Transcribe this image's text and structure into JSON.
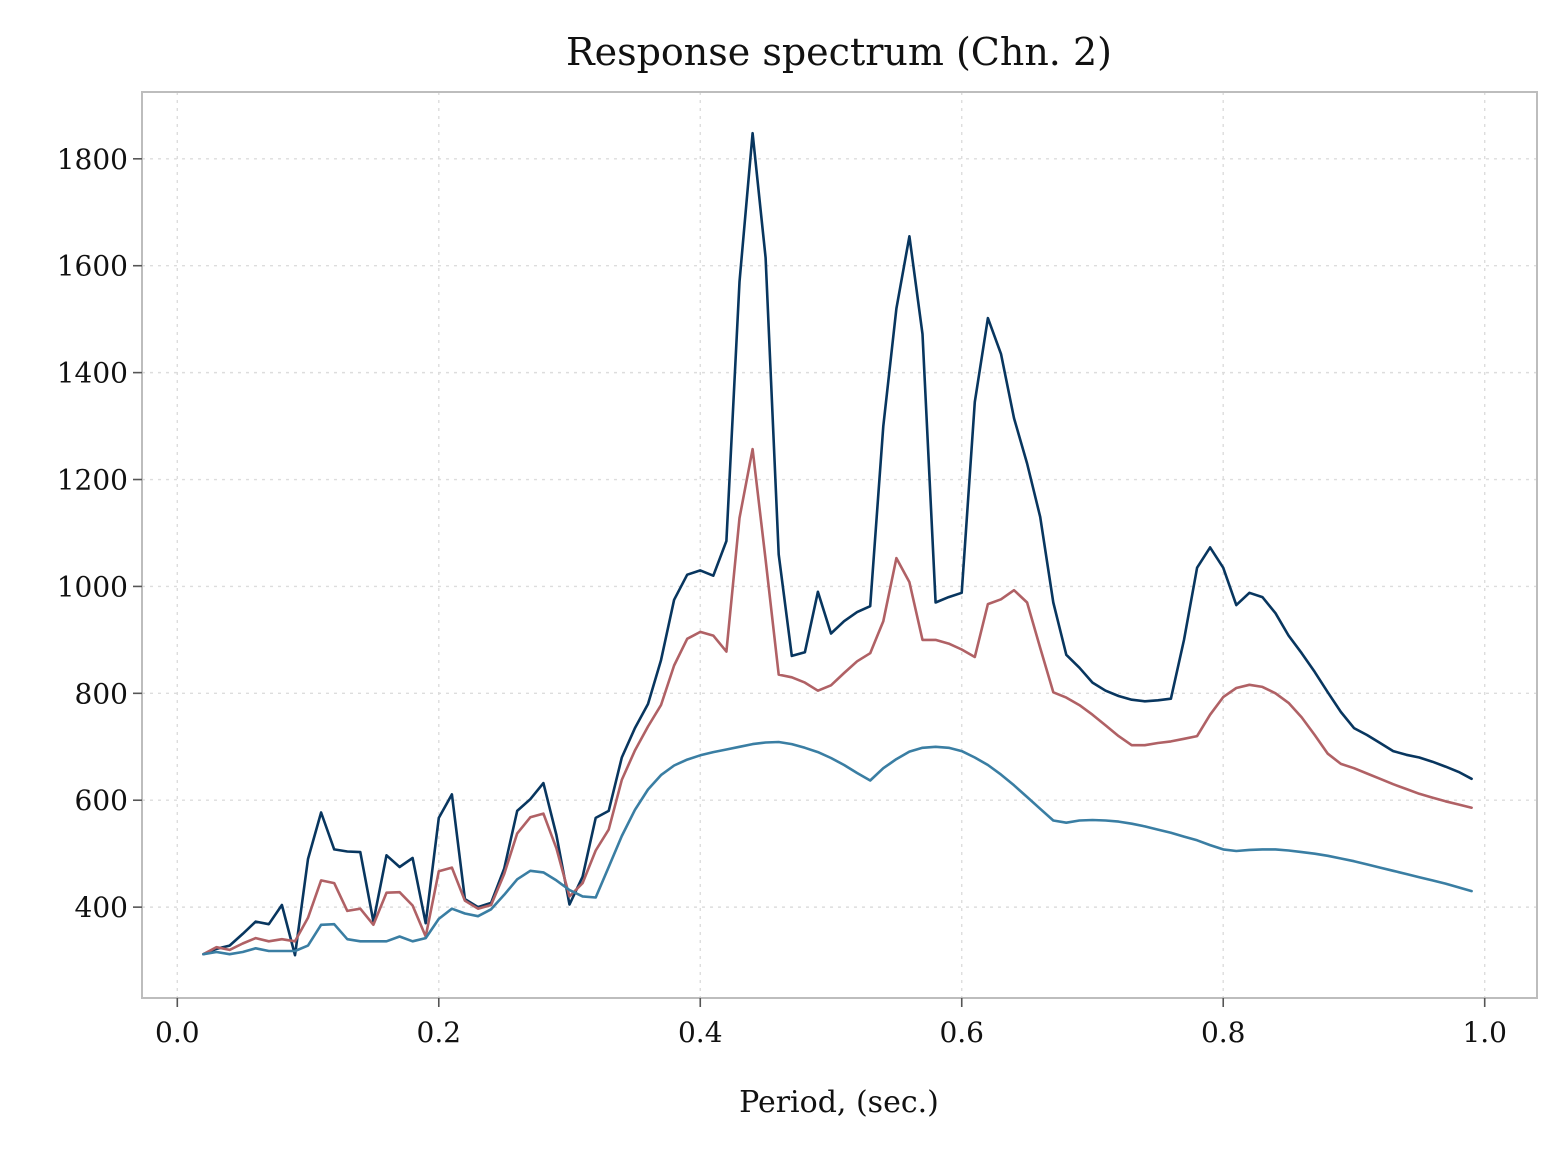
{
  "chart_data": {
    "type": "line",
    "title": "Response spectrum (Chn. 2)",
    "xlabel": "Period, (sec.)",
    "ylabel": "",
    "xlim": [
      -0.027,
      1.04
    ],
    "ylim": [
      230,
      1925
    ],
    "xticks": [
      0.0,
      0.2,
      0.4,
      0.6,
      0.8,
      1.0
    ],
    "xtick_labels": [
      "0.0",
      "0.2",
      "0.4",
      "0.6",
      "0.8",
      "1.0"
    ],
    "yticks": [
      400,
      600,
      800,
      1000,
      1200,
      1400,
      1600,
      1800
    ],
    "ytick_labels": [
      "400",
      "600",
      "800",
      "1000",
      "1200",
      "1400",
      "1600",
      "1800"
    ],
    "grid": true,
    "legend": "none",
    "colors": [
      "#08365f",
      "#b06165",
      "#3a7ea3"
    ],
    "series": [
      {
        "points": [
          [
            0.02,
            312
          ],
          [
            0.03,
            322
          ],
          [
            0.04,
            328
          ],
          [
            0.05,
            350
          ],
          [
            0.06,
            373
          ],
          [
            0.07,
            368
          ],
          [
            0.08,
            404
          ],
          [
            0.09,
            310
          ],
          [
            0.1,
            490
          ],
          [
            0.11,
            577
          ],
          [
            0.12,
            508
          ],
          [
            0.13,
            504
          ],
          [
            0.14,
            503
          ],
          [
            0.15,
            373
          ],
          [
            0.16,
            497
          ],
          [
            0.17,
            475
          ],
          [
            0.18,
            492
          ],
          [
            0.19,
            370
          ],
          [
            0.2,
            567
          ],
          [
            0.21,
            611
          ],
          [
            0.22,
            415
          ],
          [
            0.23,
            400
          ],
          [
            0.24,
            408
          ],
          [
            0.25,
            472
          ],
          [
            0.26,
            580
          ],
          [
            0.27,
            602
          ],
          [
            0.28,
            632
          ],
          [
            0.29,
            535
          ],
          [
            0.3,
            405
          ],
          [
            0.31,
            457
          ],
          [
            0.32,
            567
          ],
          [
            0.33,
            580
          ],
          [
            0.34,
            680
          ],
          [
            0.35,
            735
          ],
          [
            0.36,
            780
          ],
          [
            0.37,
            862
          ],
          [
            0.38,
            975
          ],
          [
            0.39,
            1022
          ],
          [
            0.4,
            1030
          ],
          [
            0.41,
            1020
          ],
          [
            0.42,
            1085
          ],
          [
            0.43,
            1570
          ],
          [
            0.44,
            1848
          ],
          [
            0.45,
            1615
          ],
          [
            0.46,
            1060
          ],
          [
            0.47,
            870
          ],
          [
            0.48,
            877
          ],
          [
            0.49,
            990
          ],
          [
            0.5,
            912
          ],
          [
            0.51,
            935
          ],
          [
            0.52,
            952
          ],
          [
            0.53,
            963
          ],
          [
            0.54,
            1300
          ],
          [
            0.55,
            1520
          ],
          [
            0.56,
            1655
          ],
          [
            0.57,
            1472
          ],
          [
            0.58,
            970
          ],
          [
            0.59,
            980
          ],
          [
            0.6,
            988
          ],
          [
            0.61,
            1345
          ],
          [
            0.62,
            1502
          ],
          [
            0.63,
            1435
          ],
          [
            0.64,
            1315
          ],
          [
            0.65,
            1230
          ],
          [
            0.66,
            1130
          ],
          [
            0.67,
            970
          ],
          [
            0.68,
            872
          ],
          [
            0.69,
            848
          ],
          [
            0.7,
            820
          ],
          [
            0.71,
            805
          ],
          [
            0.72,
            795
          ],
          [
            0.73,
            788
          ],
          [
            0.74,
            785
          ],
          [
            0.75,
            787
          ],
          [
            0.76,
            790
          ],
          [
            0.77,
            900
          ],
          [
            0.78,
            1035
          ],
          [
            0.79,
            1073
          ],
          [
            0.8,
            1035
          ],
          [
            0.81,
            965
          ],
          [
            0.82,
            988
          ],
          [
            0.83,
            980
          ],
          [
            0.84,
            950
          ],
          [
            0.85,
            908
          ],
          [
            0.86,
            875
          ],
          [
            0.87,
            840
          ],
          [
            0.88,
            802
          ],
          [
            0.89,
            765
          ],
          [
            0.9,
            735
          ],
          [
            0.91,
            722
          ],
          [
            0.92,
            707
          ],
          [
            0.93,
            692
          ],
          [
            0.94,
            685
          ],
          [
            0.95,
            680
          ],
          [
            0.96,
            672
          ],
          [
            0.97,
            663
          ],
          [
            0.98,
            653
          ],
          [
            0.99,
            640
          ]
        ]
      },
      {
        "points": [
          [
            0.02,
            312
          ],
          [
            0.03,
            325
          ],
          [
            0.04,
            320
          ],
          [
            0.05,
            332
          ],
          [
            0.06,
            342
          ],
          [
            0.07,
            336
          ],
          [
            0.08,
            340
          ],
          [
            0.09,
            336
          ],
          [
            0.1,
            380
          ],
          [
            0.11,
            450
          ],
          [
            0.12,
            445
          ],
          [
            0.13,
            393
          ],
          [
            0.14,
            397
          ],
          [
            0.15,
            367
          ],
          [
            0.16,
            427
          ],
          [
            0.17,
            428
          ],
          [
            0.18,
            403
          ],
          [
            0.19,
            345
          ],
          [
            0.2,
            467
          ],
          [
            0.21,
            474
          ],
          [
            0.22,
            412
          ],
          [
            0.23,
            397
          ],
          [
            0.24,
            404
          ],
          [
            0.25,
            462
          ],
          [
            0.26,
            538
          ],
          [
            0.27,
            568
          ],
          [
            0.28,
            575
          ],
          [
            0.29,
            510
          ],
          [
            0.3,
            420
          ],
          [
            0.31,
            445
          ],
          [
            0.32,
            506
          ],
          [
            0.33,
            545
          ],
          [
            0.34,
            638
          ],
          [
            0.35,
            693
          ],
          [
            0.36,
            738
          ],
          [
            0.37,
            778
          ],
          [
            0.38,
            852
          ],
          [
            0.39,
            902
          ],
          [
            0.4,
            915
          ],
          [
            0.41,
            908
          ],
          [
            0.42,
            878
          ],
          [
            0.43,
            1128
          ],
          [
            0.44,
            1257
          ],
          [
            0.45,
            1050
          ],
          [
            0.46,
            835
          ],
          [
            0.47,
            830
          ],
          [
            0.48,
            820
          ],
          [
            0.49,
            805
          ],
          [
            0.5,
            815
          ],
          [
            0.51,
            838
          ],
          [
            0.52,
            860
          ],
          [
            0.53,
            875
          ],
          [
            0.54,
            935
          ],
          [
            0.55,
            1053
          ],
          [
            0.56,
            1008
          ],
          [
            0.57,
            900
          ],
          [
            0.58,
            900
          ],
          [
            0.59,
            893
          ],
          [
            0.6,
            882
          ],
          [
            0.61,
            868
          ],
          [
            0.62,
            967
          ],
          [
            0.63,
            976
          ],
          [
            0.64,
            993
          ],
          [
            0.65,
            970
          ],
          [
            0.66,
            885
          ],
          [
            0.67,
            802
          ],
          [
            0.68,
            792
          ],
          [
            0.69,
            778
          ],
          [
            0.7,
            760
          ],
          [
            0.71,
            740
          ],
          [
            0.72,
            720
          ],
          [
            0.73,
            703
          ],
          [
            0.74,
            703
          ],
          [
            0.75,
            707
          ],
          [
            0.76,
            710
          ],
          [
            0.77,
            715
          ],
          [
            0.78,
            720
          ],
          [
            0.79,
            760
          ],
          [
            0.8,
            793
          ],
          [
            0.81,
            810
          ],
          [
            0.82,
            816
          ],
          [
            0.83,
            812
          ],
          [
            0.84,
            800
          ],
          [
            0.85,
            782
          ],
          [
            0.86,
            755
          ],
          [
            0.87,
            722
          ],
          [
            0.88,
            687
          ],
          [
            0.89,
            668
          ],
          [
            0.9,
            660
          ],
          [
            0.91,
            650
          ],
          [
            0.92,
            640
          ],
          [
            0.93,
            630
          ],
          [
            0.94,
            621
          ],
          [
            0.95,
            612
          ],
          [
            0.96,
            605
          ],
          [
            0.97,
            598
          ],
          [
            0.98,
            592
          ],
          [
            0.99,
            586
          ]
        ]
      },
      {
        "points": [
          [
            0.02,
            312
          ],
          [
            0.03,
            316
          ],
          [
            0.04,
            312
          ],
          [
            0.05,
            316
          ],
          [
            0.06,
            323
          ],
          [
            0.07,
            318
          ],
          [
            0.08,
            318
          ],
          [
            0.09,
            318
          ],
          [
            0.1,
            328
          ],
          [
            0.11,
            367
          ],
          [
            0.12,
            368
          ],
          [
            0.13,
            340
          ],
          [
            0.14,
            336
          ],
          [
            0.15,
            336
          ],
          [
            0.16,
            336
          ],
          [
            0.17,
            345
          ],
          [
            0.18,
            336
          ],
          [
            0.19,
            342
          ],
          [
            0.2,
            378
          ],
          [
            0.21,
            397
          ],
          [
            0.22,
            388
          ],
          [
            0.23,
            383
          ],
          [
            0.24,
            396
          ],
          [
            0.25,
            423
          ],
          [
            0.26,
            452
          ],
          [
            0.27,
            468
          ],
          [
            0.28,
            465
          ],
          [
            0.29,
            450
          ],
          [
            0.3,
            432
          ],
          [
            0.31,
            420
          ],
          [
            0.32,
            418
          ],
          [
            0.33,
            475
          ],
          [
            0.34,
            533
          ],
          [
            0.35,
            582
          ],
          [
            0.36,
            620
          ],
          [
            0.37,
            647
          ],
          [
            0.38,
            665
          ],
          [
            0.39,
            676
          ],
          [
            0.4,
            684
          ],
          [
            0.41,
            690
          ],
          [
            0.42,
            695
          ],
          [
            0.43,
            700
          ],
          [
            0.44,
            705
          ],
          [
            0.45,
            708
          ],
          [
            0.46,
            709
          ],
          [
            0.47,
            705
          ],
          [
            0.48,
            698
          ],
          [
            0.49,
            690
          ],
          [
            0.5,
            679
          ],
          [
            0.51,
            666
          ],
          [
            0.52,
            651
          ],
          [
            0.53,
            637
          ],
          [
            0.54,
            660
          ],
          [
            0.55,
            677
          ],
          [
            0.56,
            691
          ],
          [
            0.57,
            698
          ],
          [
            0.58,
            700
          ],
          [
            0.59,
            698
          ],
          [
            0.6,
            692
          ],
          [
            0.61,
            680
          ],
          [
            0.62,
            666
          ],
          [
            0.63,
            648
          ],
          [
            0.64,
            628
          ],
          [
            0.65,
            606
          ],
          [
            0.66,
            584
          ],
          [
            0.67,
            562
          ],
          [
            0.68,
            558
          ],
          [
            0.69,
            562
          ],
          [
            0.7,
            563
          ],
          [
            0.71,
            562
          ],
          [
            0.72,
            560
          ],
          [
            0.73,
            556
          ],
          [
            0.74,
            551
          ],
          [
            0.75,
            545
          ],
          [
            0.76,
            539
          ],
          [
            0.77,
            532
          ],
          [
            0.78,
            525
          ],
          [
            0.79,
            516
          ],
          [
            0.8,
            508
          ],
          [
            0.81,
            505
          ],
          [
            0.82,
            507
          ],
          [
            0.83,
            508
          ],
          [
            0.84,
            508
          ],
          [
            0.85,
            506
          ],
          [
            0.86,
            503
          ],
          [
            0.87,
            500
          ],
          [
            0.88,
            496
          ],
          [
            0.89,
            491
          ],
          [
            0.9,
            486
          ],
          [
            0.91,
            480
          ],
          [
            0.92,
            474
          ],
          [
            0.93,
            468
          ],
          [
            0.94,
            462
          ],
          [
            0.95,
            456
          ],
          [
            0.96,
            450
          ],
          [
            0.97,
            444
          ],
          [
            0.98,
            437
          ],
          [
            0.99,
            430
          ]
        ]
      }
    ]
  }
}
